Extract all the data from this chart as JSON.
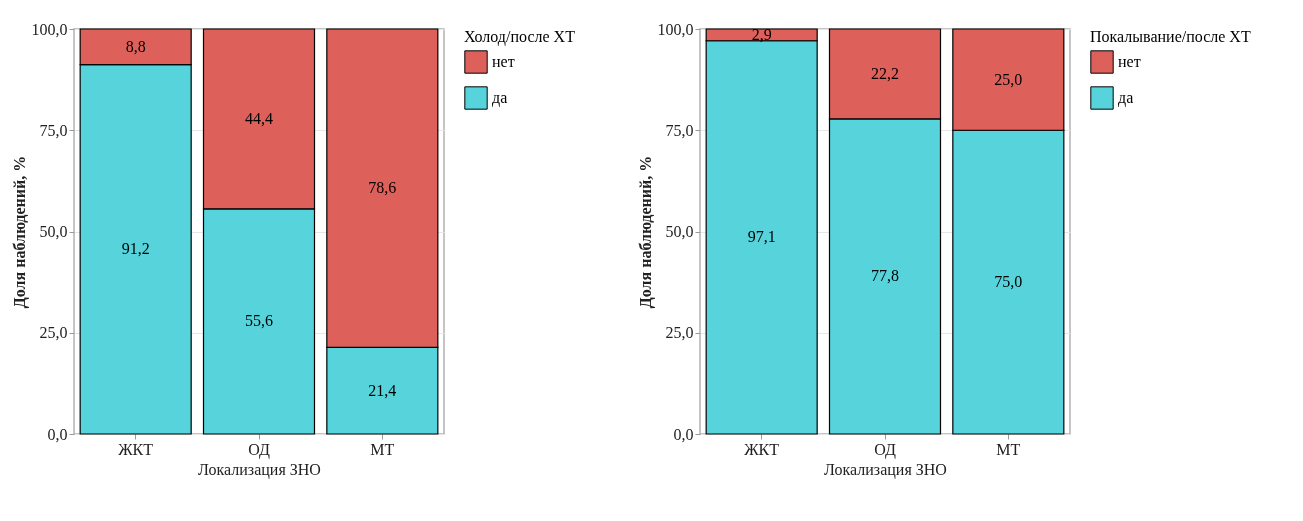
{
  "chart_data": [
    {
      "type": "bar",
      "stacked": true,
      "xlabel": "Локализация ЗНО",
      "ylabel": "Доля наблюдений, %",
      "legend_title": "Холод/после ХТ",
      "categories": [
        "ЖКТ",
        "ОД",
        "МТ"
      ],
      "series": [
        {
          "name": "да",
          "color": "#56d3db",
          "values": [
            91.2,
            55.6,
            21.4
          ],
          "value_labels": [
            "91,2",
            "55,6",
            "21,4"
          ]
        },
        {
          "name": "нет",
          "color": "#dd615a",
          "values": [
            8.8,
            44.4,
            78.6
          ],
          "value_labels": [
            "8,8",
            "44,4",
            "78,6"
          ]
        }
      ],
      "ylim": [
        0,
        100
      ],
      "yticks": [
        {
          "value": 0,
          "label": "0,0"
        },
        {
          "value": 25,
          "label": "25,0"
        },
        {
          "value": 50,
          "label": "50,0"
        },
        {
          "value": 75,
          "label": "75,0"
        },
        {
          "value": 100,
          "label": "100,0"
        }
      ],
      "grid": true,
      "legend": "right"
    },
    {
      "type": "bar",
      "stacked": true,
      "xlabel": "Локализация ЗНО",
      "ylabel": "Доля наблюдений, %",
      "legend_title": "Покалывание/после ХТ",
      "categories": [
        "ЖКТ",
        "ОД",
        "МТ"
      ],
      "series": [
        {
          "name": "да",
          "color": "#56d3db",
          "values": [
            97.1,
            77.8,
            75.0
          ],
          "value_labels": [
            "97,1",
            "77,8",
            "75,0"
          ]
        },
        {
          "name": "нет",
          "color": "#dd615a",
          "values": [
            2.9,
            22.2,
            25.0
          ],
          "value_labels": [
            "2,9",
            "22,2",
            "25,0"
          ]
        }
      ],
      "ylim": [
        0,
        100
      ],
      "yticks": [
        {
          "value": 0,
          "label": "0,0"
        },
        {
          "value": 25,
          "label": "25,0"
        },
        {
          "value": 50,
          "label": "50,0"
        },
        {
          "value": 75,
          "label": "75,0"
        },
        {
          "value": 100,
          "label": "100,0"
        }
      ],
      "grid": true,
      "legend": "right"
    }
  ]
}
